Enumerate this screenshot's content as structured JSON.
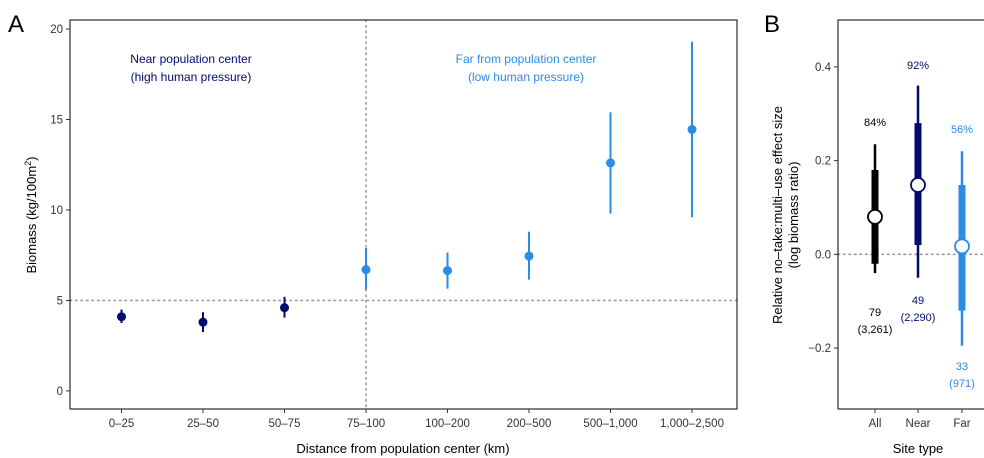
{
  "colors": {
    "near": "#000b6e",
    "far": "#2b8ce6",
    "all": "#000000",
    "reference_line": "#9a9a9a"
  },
  "panel_a": {
    "letter": "A",
    "annotation_near_line1": "Near population center",
    "annotation_near_line2": "(high human pressure)",
    "annotation_far_line1": "Far from population center",
    "annotation_far_line2": "(low human pressure)"
  },
  "panel_b": {
    "letter": "B",
    "all_pct": "84%",
    "near_pct": "92%",
    "far_pct": "56%",
    "all_n": "79",
    "all_sites": "(3,261)",
    "near_n": "49",
    "near_sites": "(2,290)",
    "far_n": "33",
    "far_sites": "(971)"
  },
  "chart_data": [
    {
      "type": "scatter",
      "xlabel": "Distance from population center (km)",
      "ylabel": "Biomass (kg/100m²)",
      "ylabel_main": "Biomass (kg/100m",
      "ylabel_sup": "2",
      "ylabel_close": ")",
      "ylim": [
        -1,
        20.5
      ],
      "yticks": [
        0,
        5,
        10,
        15,
        20
      ],
      "ytick_labels": [
        "0",
        "5",
        "10",
        "15",
        "20"
      ],
      "categories": [
        "0–25",
        "25–50",
        "50–75",
        "75–100",
        "100–200",
        "200–500",
        "500–1,000",
        "1,000–2,500"
      ],
      "values": [
        4.1,
        3.8,
        4.6,
        6.7,
        6.65,
        7.45,
        12.6,
        14.45
      ],
      "lower": [
        3.75,
        3.25,
        4.05,
        5.6,
        5.65,
        6.15,
        9.8,
        9.6
      ],
      "upper": [
        4.5,
        4.35,
        5.2,
        7.9,
        7.65,
        8.8,
        15.4,
        19.3
      ],
      "groups": [
        "near",
        "near",
        "near",
        "far",
        "far",
        "far",
        "far",
        "far"
      ],
      "hline": 5,
      "vline_category": "75–100",
      "grid": false
    },
    {
      "type": "scatter",
      "xlabel": "Site type",
      "ylabel_line1": "Relative no–take:multi–use effect size",
      "ylabel_line2": "(log biomass ratio)",
      "ylim": [
        -0.33,
        0.5
      ],
      "yticks": [
        -0.2,
        0.0,
        0.2,
        0.4
      ],
      "ytick_labels": [
        "−0.2",
        "0.0",
        "0.2",
        "0.4"
      ],
      "categories": [
        "All",
        "Near",
        "Far"
      ],
      "values": [
        0.08,
        0.148,
        0.017
      ],
      "inner_lower": [
        -0.02,
        0.02,
        -0.12
      ],
      "inner_upper": [
        0.18,
        0.28,
        0.148
      ],
      "outer_lower": [
        -0.04,
        -0.05,
        -0.195
      ],
      "outer_upper": [
        0.235,
        0.36,
        0.22
      ],
      "groups": [
        "all",
        "near",
        "far"
      ],
      "hline": 0,
      "grid": false
    }
  ]
}
